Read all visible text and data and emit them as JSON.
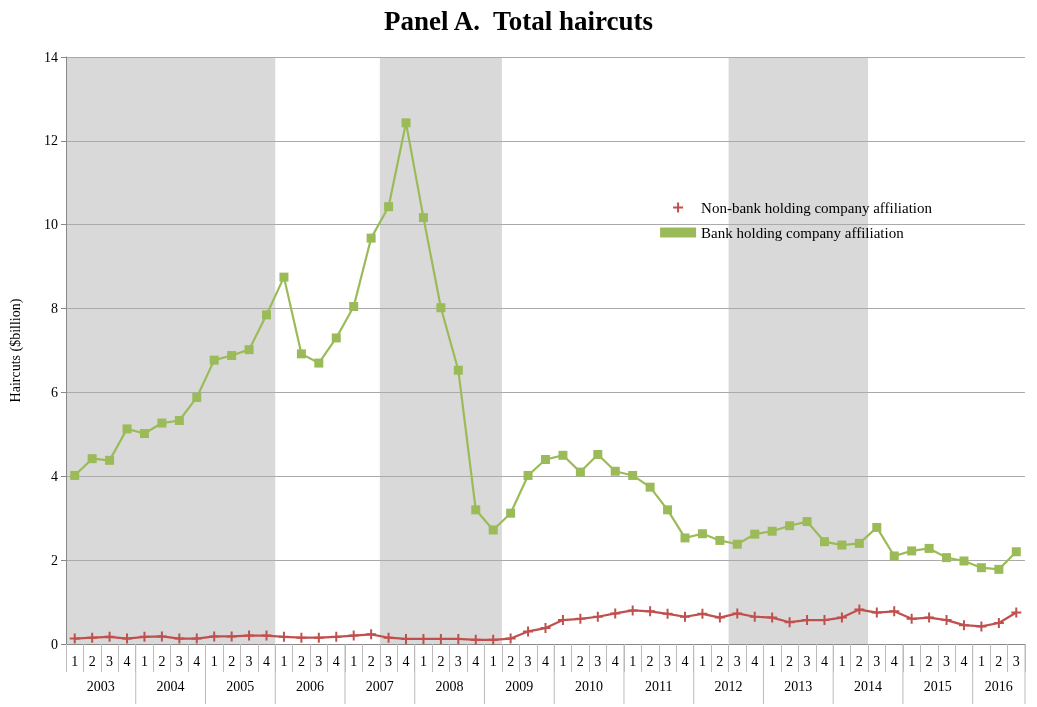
{
  "chart_data": {
    "type": "line",
    "title": "Panel A.  Total haircuts",
    "ylabel": "Haircuts ($billion)",
    "categories": [
      "1",
      "2",
      "3",
      "4",
      "1",
      "2",
      "3",
      "4",
      "1",
      "2",
      "3",
      "4",
      "1",
      "2",
      "3",
      "4",
      "1",
      "2",
      "3",
      "4",
      "1",
      "2",
      "3",
      "4",
      "1",
      "2",
      "3",
      "4",
      "1",
      "2",
      "3",
      "4",
      "1",
      "2",
      "3",
      "4",
      "1",
      "2",
      "3",
      "4",
      "1",
      "2",
      "3",
      "4",
      "1",
      "2",
      "3",
      "4",
      "1",
      "2",
      "3",
      "4",
      "1",
      "2",
      "3"
    ],
    "annotations": [
      "2003",
      "2004",
      "2005",
      "2006",
      "2007",
      "2008",
      "2009",
      "2010",
      "2011",
      "2012",
      "2013",
      "2014",
      "2015",
      "2016"
    ],
    "series": [
      {
        "name": "Non-bank holding company affiliation",
        "color": "#c0504d",
        "marker": "cross",
        "values": [
          0.13,
          0.15,
          0.17,
          0.13,
          0.17,
          0.18,
          0.13,
          0.13,
          0.18,
          0.18,
          0.2,
          0.2,
          0.17,
          0.15,
          0.15,
          0.17,
          0.2,
          0.23,
          0.15,
          0.12,
          0.12,
          0.12,
          0.12,
          0.1,
          0.1,
          0.13,
          0.3,
          0.38,
          0.57,
          0.6,
          0.65,
          0.73,
          0.8,
          0.78,
          0.72,
          0.65,
          0.72,
          0.63,
          0.73,
          0.65,
          0.63,
          0.52,
          0.57,
          0.57,
          0.63,
          0.82,
          0.75,
          0.78,
          0.6,
          0.63,
          0.57,
          0.45,
          0.42,
          0.5,
          0.75
        ]
      },
      {
        "name": "Bank holding company affiliation",
        "color": "#9bbb59",
        "marker": "square",
        "values": [
          4.02,
          4.42,
          4.38,
          5.13,
          5.02,
          5.27,
          5.33,
          5.88,
          6.77,
          6.88,
          7.02,
          7.85,
          8.75,
          6.92,
          6.7,
          7.3,
          8.05,
          9.68,
          10.43,
          12.43,
          10.17,
          8.02,
          6.53,
          3.2,
          2.72,
          3.12,
          4.02,
          4.4,
          4.5,
          4.1,
          4.52,
          4.12,
          4.02,
          3.74,
          3.2,
          2.53,
          2.63,
          2.47,
          2.38,
          2.62,
          2.69,
          2.82,
          2.92,
          2.44,
          2.36,
          2.4,
          2.78,
          2.1,
          2.22,
          2.28,
          2.06,
          1.98,
          1.82,
          1.78,
          2.2
        ]
      }
    ],
    "ylim": [
      0,
      14
    ],
    "yticks": [
      0,
      2,
      4,
      6,
      8,
      10,
      12,
      14
    ],
    "grid": "y",
    "legend": "top right"
  }
}
